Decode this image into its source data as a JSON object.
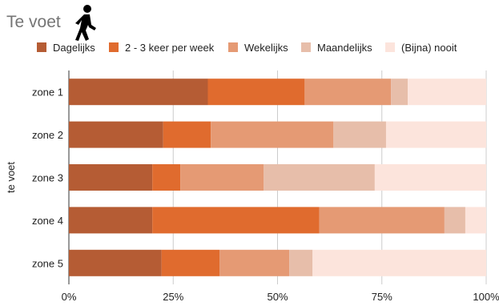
{
  "title": "Te voet",
  "icon": "walking-person-icon",
  "chart_data": {
    "type": "bar",
    "orientation": "horizontal",
    "stacked": true,
    "normalized": true,
    "categories": [
      "zone 1",
      "zone 2",
      "zone 3",
      "zone 4",
      "zone 5"
    ],
    "ylabel": "te voet",
    "xlabel": "",
    "xlim": [
      0,
      100
    ],
    "x_ticks": [
      "0%",
      "25%",
      "50%",
      "75%",
      "100%"
    ],
    "grid": true,
    "legend_position": "top",
    "series": [
      {
        "name": "Dagelijks",
        "color": "#b55c34",
        "values": [
          33.3,
          22.6,
          20.0,
          20.0,
          22.2
        ]
      },
      {
        "name": "2 - 3 keer per week",
        "color": "#e06b2e",
        "values": [
          23.2,
          11.4,
          6.7,
          40.0,
          13.9
        ]
      },
      {
        "name": "Wekelijks",
        "color": "#e59a74",
        "values": [
          20.7,
          29.4,
          20.0,
          30.0,
          16.7
        ]
      },
      {
        "name": "Maandelijks",
        "color": "#e7beaa",
        "values": [
          4.0,
          12.6,
          26.6,
          5.0,
          5.6
        ]
      },
      {
        "name": "(Bijna) nooit",
        "color": "#fce4dc",
        "values": [
          18.8,
          24.0,
          26.7,
          5.0,
          41.6
        ]
      }
    ]
  }
}
